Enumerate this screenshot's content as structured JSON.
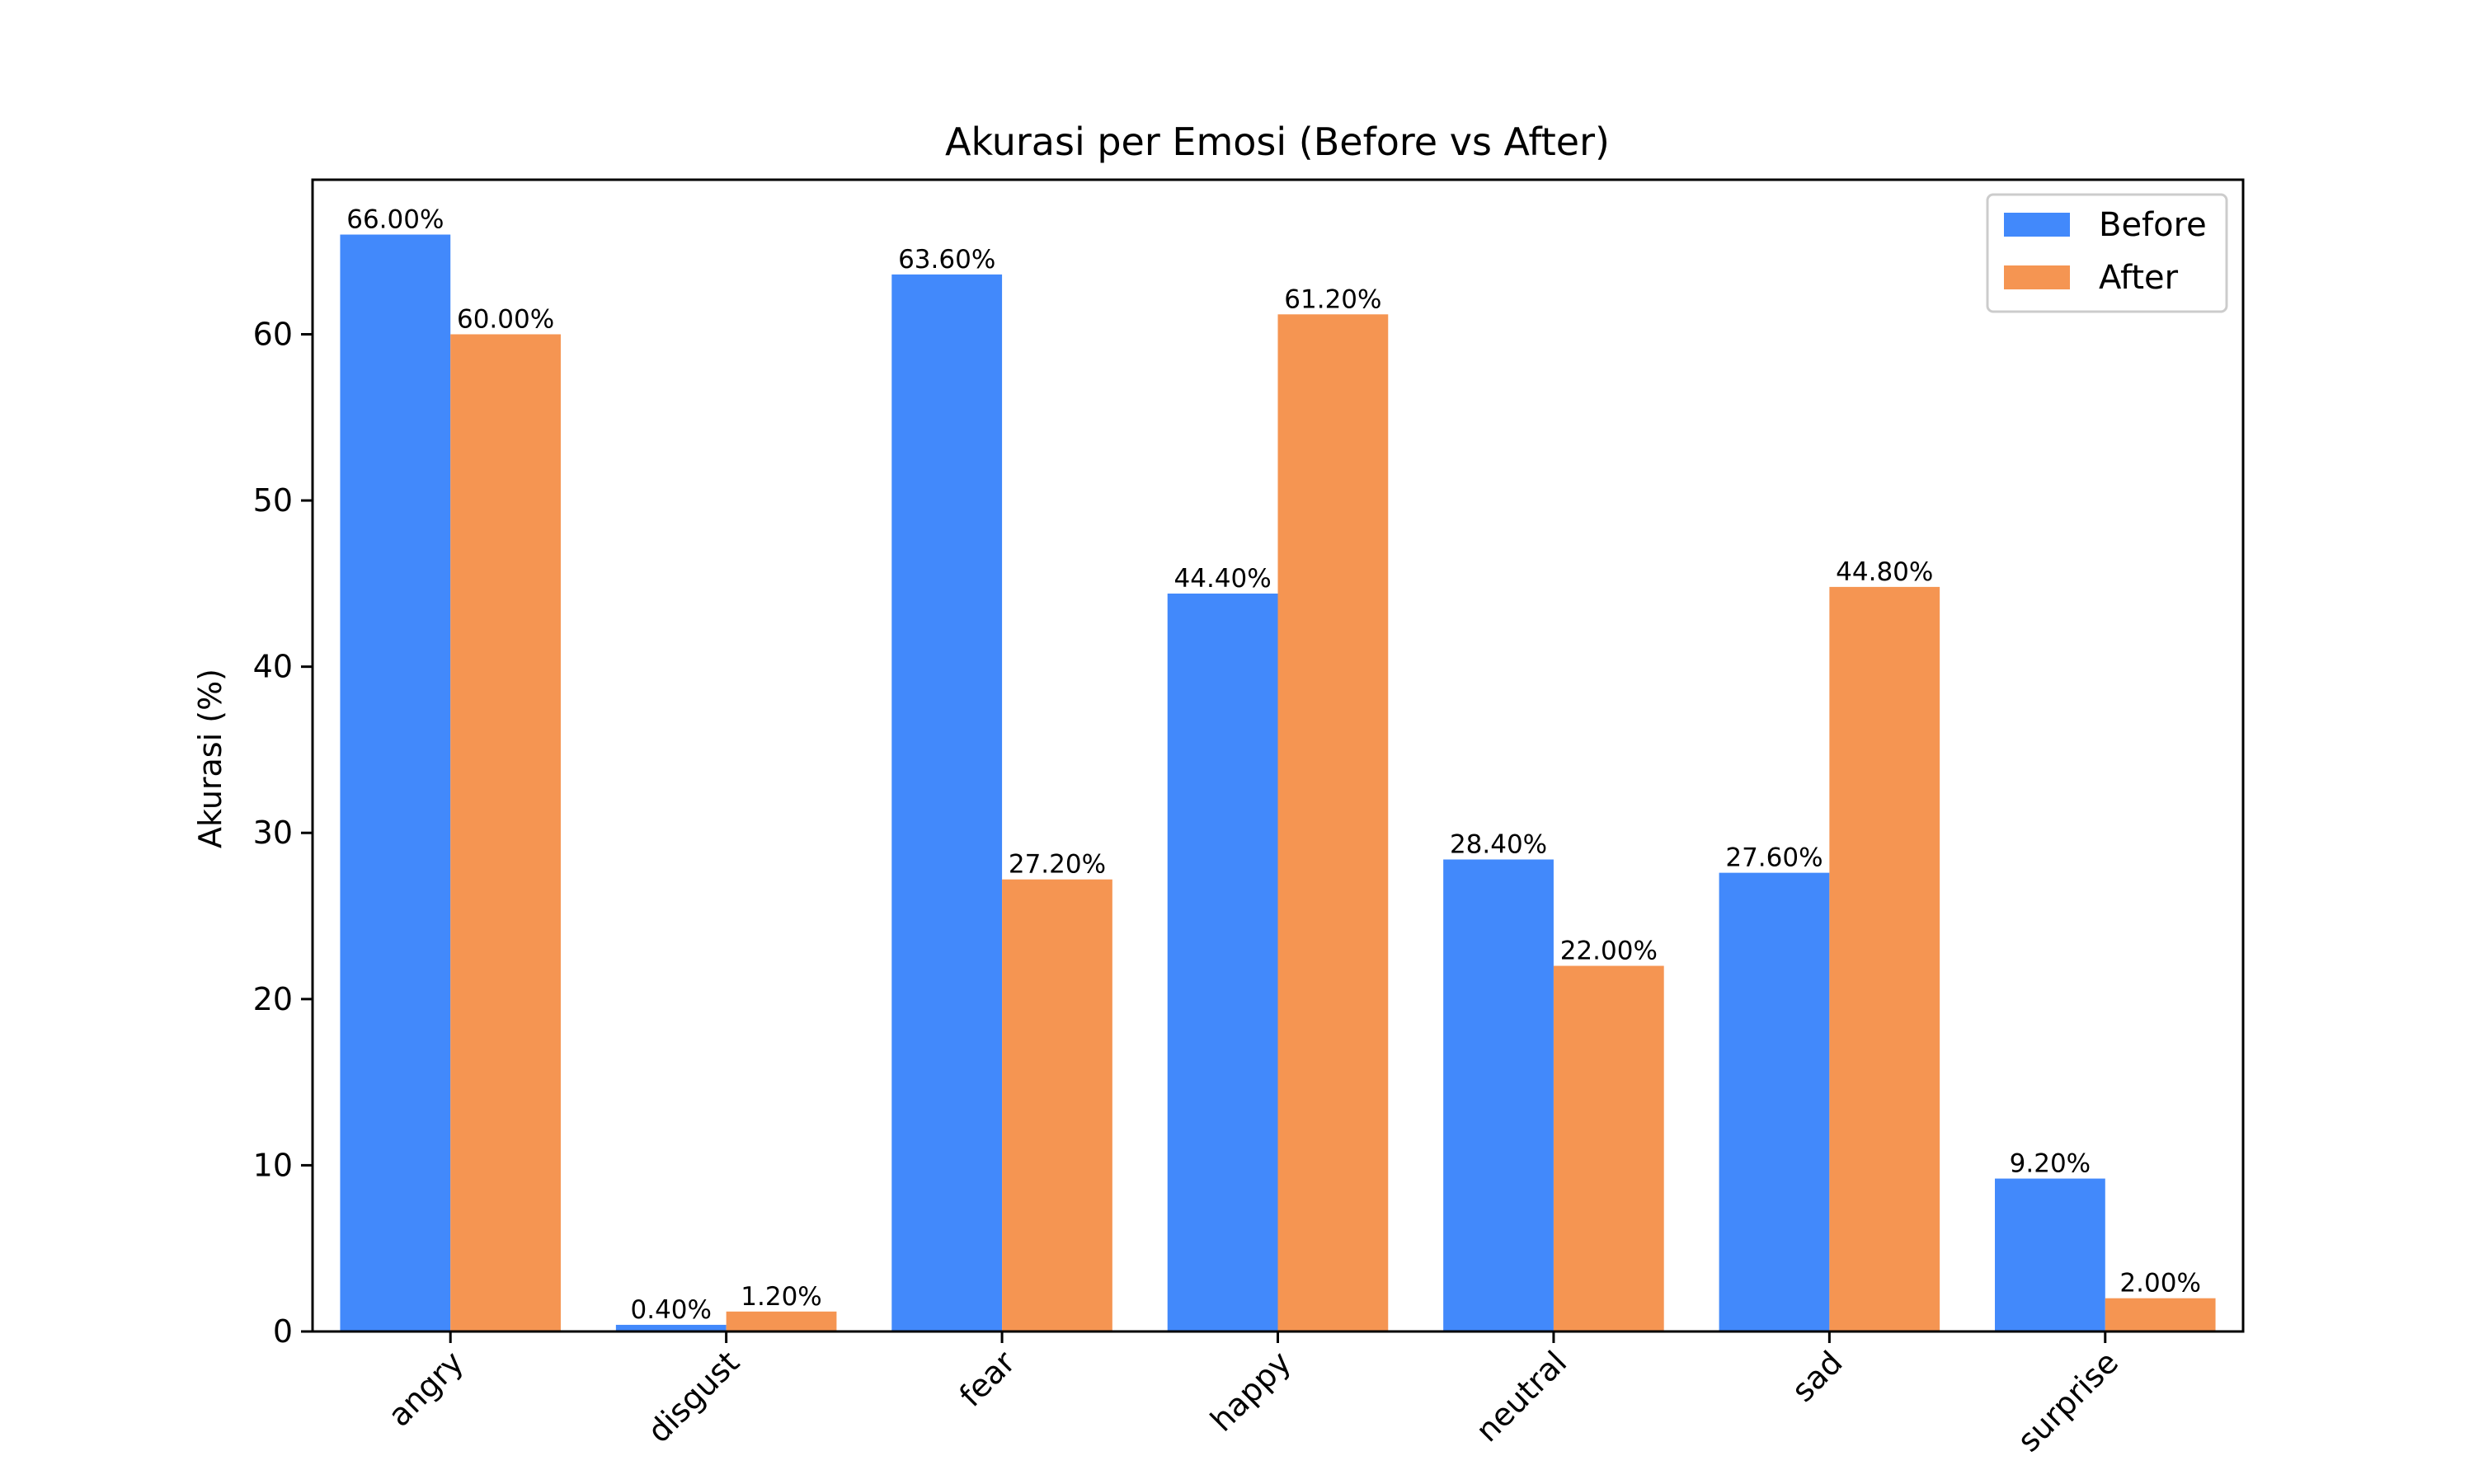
{
  "chart_data": {
    "type": "bar",
    "title": "Akurasi per Emosi (Before vs After)",
    "xlabel": "",
    "ylabel": "Akurasi (%)",
    "categories": [
      "angry",
      "disgust",
      "fear",
      "happy",
      "neutral",
      "sad",
      "surprise"
    ],
    "series": [
      {
        "name": "Before",
        "color": "#4289fb",
        "values": [
          66.0,
          0.4,
          63.6,
          44.4,
          28.4,
          27.6,
          9.2
        ],
        "labels": [
          "66.00%",
          "0.40%",
          "63.60%",
          "44.40%",
          "28.40%",
          "27.60%",
          "9.20%"
        ]
      },
      {
        "name": "After",
        "color": "#f59552",
        "values": [
          60.0,
          1.2,
          27.2,
          61.2,
          22.0,
          44.8,
          2.0
        ],
        "labels": [
          "60.00%",
          "1.20%",
          "27.20%",
          "61.20%",
          "22.00%",
          "44.80%",
          "2.00%"
        ]
      }
    ],
    "yticks": [
      0,
      10,
      20,
      30,
      40,
      50,
      60
    ],
    "ylim": [
      0,
      69.3
    ],
    "grid": false,
    "legend_position": "top-right"
  }
}
